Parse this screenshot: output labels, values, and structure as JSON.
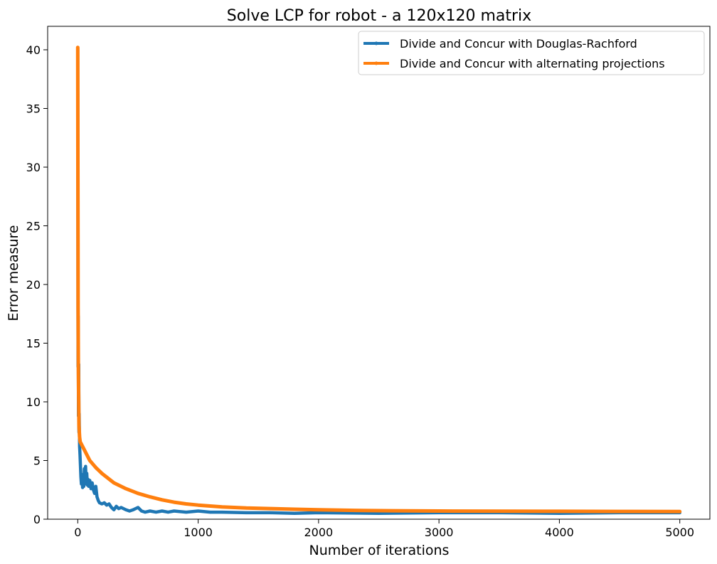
{
  "chart_data": {
    "type": "line",
    "title": "Solve LCP for robot - a 120x120 matrix",
    "xlabel": "Number of iterations",
    "ylabel": "Error measure",
    "xlim": [
      -250,
      5250
    ],
    "ylim": [
      0,
      42
    ],
    "xticks": [
      0,
      1000,
      2000,
      3000,
      4000,
      5000
    ],
    "yticks": [
      0,
      5,
      10,
      15,
      20,
      25,
      30,
      35,
      40
    ],
    "grid": false,
    "legend_position": "top-right",
    "series": [
      {
        "name": "Divide and Concur with Douglas-Rachford",
        "color": "#1f77b4",
        "points": [
          [
            0,
            40.1
          ],
          [
            2,
            13.0
          ],
          [
            4,
            17.3
          ],
          [
            6,
            8.8
          ],
          [
            8,
            13.2
          ],
          [
            10,
            7.4
          ],
          [
            12,
            9.0
          ],
          [
            15,
            6.2
          ],
          [
            18,
            5.6
          ],
          [
            22,
            4.7
          ],
          [
            26,
            3.6
          ],
          [
            30,
            3.0
          ],
          [
            35,
            3.8
          ],
          [
            40,
            2.7
          ],
          [
            45,
            3.5
          ],
          [
            50,
            2.8
          ],
          [
            55,
            4.3
          ],
          [
            60,
            3.2
          ],
          [
            65,
            4.5
          ],
          [
            70,
            3.0
          ],
          [
            75,
            3.9
          ],
          [
            80,
            2.9
          ],
          [
            85,
            3.4
          ],
          [
            90,
            2.8
          ],
          [
            100,
            3.3
          ],
          [
            110,
            2.6
          ],
          [
            120,
            3.1
          ],
          [
            130,
            2.5
          ],
          [
            140,
            2.2
          ],
          [
            150,
            2.8
          ],
          [
            160,
            1.9
          ],
          [
            170,
            1.6
          ],
          [
            180,
            1.4
          ],
          [
            200,
            1.3
          ],
          [
            220,
            1.4
          ],
          [
            240,
            1.2
          ],
          [
            260,
            1.3
          ],
          [
            280,
            1.0
          ],
          [
            300,
            0.8
          ],
          [
            320,
            1.1
          ],
          [
            340,
            0.9
          ],
          [
            360,
            1.0
          ],
          [
            380,
            0.9
          ],
          [
            400,
            0.8
          ],
          [
            430,
            0.7
          ],
          [
            460,
            0.8
          ],
          [
            480,
            0.9
          ],
          [
            500,
            1.0
          ],
          [
            530,
            0.7
          ],
          [
            560,
            0.6
          ],
          [
            600,
            0.7
          ],
          [
            650,
            0.6
          ],
          [
            700,
            0.7
          ],
          [
            750,
            0.6
          ],
          [
            800,
            0.7
          ],
          [
            900,
            0.6
          ],
          [
            1000,
            0.7
          ],
          [
            1100,
            0.6
          ],
          [
            1200,
            0.6
          ],
          [
            1400,
            0.55
          ],
          [
            1600,
            0.55
          ],
          [
            1800,
            0.5
          ],
          [
            2000,
            0.55
          ],
          [
            2500,
            0.5
          ],
          [
            3000,
            0.55
          ],
          [
            3500,
            0.55
          ],
          [
            4000,
            0.5
          ],
          [
            4500,
            0.55
          ],
          [
            5000,
            0.55
          ]
        ]
      },
      {
        "name": "Divide and Concur with alternating projections",
        "color": "#ff7f0e",
        "points": [
          [
            0,
            40.2
          ],
          [
            1,
            30.4
          ],
          [
            2,
            23.2
          ],
          [
            3,
            18.0
          ],
          [
            5,
            12.6
          ],
          [
            8,
            9.8
          ],
          [
            10,
            8.0
          ],
          [
            15,
            7.0
          ],
          [
            20,
            6.6
          ],
          [
            50,
            6.0
          ],
          [
            100,
            5.0
          ],
          [
            150,
            4.4
          ],
          [
            200,
            3.9
          ],
          [
            300,
            3.1
          ],
          [
            400,
            2.6
          ],
          [
            500,
            2.2
          ],
          [
            600,
            1.9
          ],
          [
            700,
            1.65
          ],
          [
            800,
            1.45
          ],
          [
            900,
            1.3
          ],
          [
            1000,
            1.2
          ],
          [
            1200,
            1.05
          ],
          [
            1400,
            0.95
          ],
          [
            1600,
            0.9
          ],
          [
            1800,
            0.85
          ],
          [
            2000,
            0.8
          ],
          [
            2300,
            0.75
          ],
          [
            2600,
            0.72
          ],
          [
            3000,
            0.7
          ],
          [
            3500,
            0.68
          ],
          [
            4000,
            0.67
          ],
          [
            4500,
            0.66
          ],
          [
            5000,
            0.65
          ]
        ]
      }
    ]
  }
}
